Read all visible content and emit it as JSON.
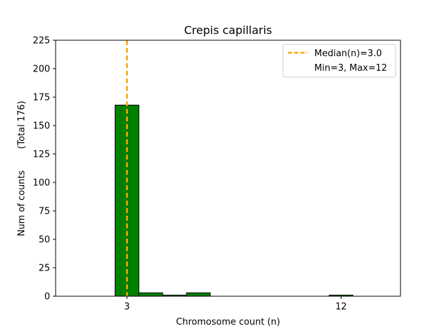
{
  "chart_data": {
    "type": "bar",
    "title": "Crepis capillaris",
    "xlabel": "Chromosome count (n)",
    "ylabel": "Num of counts",
    "ylabel_total": "(Total 176)",
    "xlim": [
      0,
      14.5
    ],
    "ylim": [
      0,
      225
    ],
    "yticks": [
      0,
      25,
      50,
      75,
      100,
      125,
      150,
      175,
      200,
      225
    ],
    "xticks": [
      3,
      12
    ],
    "bar_width": 1.0,
    "bar_color": "#008000",
    "bars": [
      {
        "x": 3,
        "value": 168
      },
      {
        "x": 4,
        "value": 3
      },
      {
        "x": 5,
        "value": 1
      },
      {
        "x": 6,
        "value": 3
      },
      {
        "x": 12,
        "value": 1
      }
    ],
    "median": 3.0,
    "median_color": "#ffa500",
    "legend": {
      "position": "top-right",
      "entries": [
        "Median(n)=3.0",
        "Min=3, Max=12"
      ]
    },
    "grid": false
  }
}
